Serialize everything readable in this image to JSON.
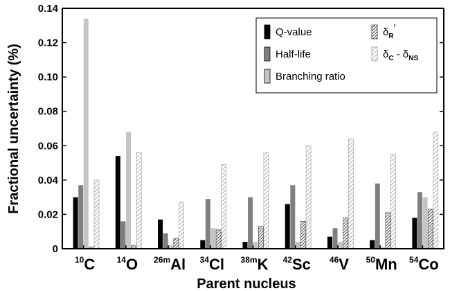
{
  "chart_data": {
    "type": "bar",
    "title": "",
    "xlabel": "Parent nucleus",
    "ylabel": "Fractional uncertainty (%)",
    "ylim": [
      0,
      0.14
    ],
    "yticks": [
      "0",
      "0.02",
      "0.04",
      "0.06",
      "0.08",
      "0.10",
      "0.12",
      "0.14"
    ],
    "categories": [
      {
        "mass": "10",
        "element": "C"
      },
      {
        "mass": "14",
        "element": "O"
      },
      {
        "mass": "26m",
        "element": "Al"
      },
      {
        "mass": "34",
        "element": "Cl"
      },
      {
        "mass": "38m",
        "element": "K"
      },
      {
        "mass": "42",
        "element": "Sc"
      },
      {
        "mass": "46",
        "element": "V"
      },
      {
        "mass": "50",
        "element": "Mn"
      },
      {
        "mass": "54",
        "element": "Co"
      }
    ],
    "series": [
      {
        "name": "Q-value",
        "color": "#000000",
        "pattern": "solid",
        "values": [
          0.03,
          0.054,
          0.017,
          0.005,
          0.004,
          0.026,
          0.007,
          0.005,
          0.018
        ]
      },
      {
        "name": "Half-life",
        "color": "#7f7f7f",
        "pattern": "solid",
        "values": [
          0.037,
          0.016,
          0.009,
          0.029,
          0.03,
          0.037,
          0.012,
          0.038,
          0.033
        ]
      },
      {
        "name": "Branching ratio",
        "color": "#c4c4c4",
        "pattern": "solid",
        "values": [
          0.134,
          0.068,
          0.002,
          0.012,
          0.004,
          0.004,
          0.004,
          0.001,
          0.03
        ]
      },
      {
        "name": "δR′",
        "color": "#555555",
        "pattern": "dense-hatch",
        "values": [
          0.001,
          0.002,
          0.006,
          0.011,
          0.013,
          0.016,
          0.018,
          0.021,
          0.023
        ]
      },
      {
        "name": "δC − δNS",
        "color": "#999999",
        "pattern": "light-hatch",
        "values": [
          0.04,
          0.056,
          0.027,
          0.049,
          0.056,
          0.06,
          0.064,
          0.055,
          0.068
        ]
      }
    ],
    "legend": {
      "position": "top-right",
      "items": [
        {
          "text": "Q-value"
        },
        {
          "text": "Half-life"
        },
        {
          "text": "Branching ratio"
        },
        {
          "main": "δ",
          "sub": "R",
          "prime": "′"
        },
        {
          "main": "δ",
          "sub": "C",
          "mid": " - δ",
          "sub2": "NS"
        }
      ]
    },
    "grid": false
  }
}
